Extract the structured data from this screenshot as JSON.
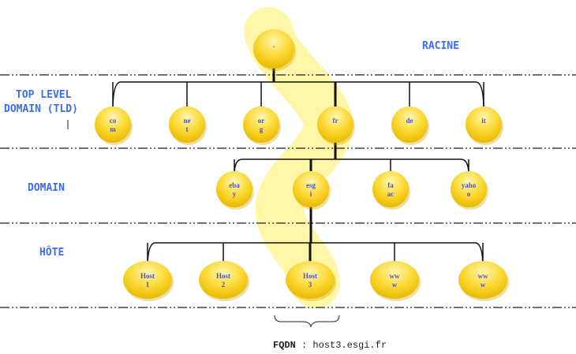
{
  "levels": {
    "root": "RACINE",
    "tld_line1": "TOP LEVEL",
    "tld_line2": "DOMAIN (TLD)",
    "domain": "DOMAIN",
    "host": "HÔTE"
  },
  "root_node": ".",
  "tld_nodes": [
    [
      "co",
      "m"
    ],
    [
      "ne",
      "t"
    ],
    [
      "or",
      "g"
    ],
    [
      "fr",
      ""
    ],
    [
      "de",
      ""
    ],
    [
      "it",
      ""
    ]
  ],
  "domain_nodes": [
    [
      "eba",
      "y"
    ],
    [
      "esg",
      "i"
    ],
    [
      "fa",
      "ac"
    ],
    [
      "yaho",
      "o"
    ]
  ],
  "host_nodes": [
    [
      "Host",
      "1"
    ],
    [
      "Host",
      "2"
    ],
    [
      "Host",
      "3"
    ],
    [
      "ww",
      "w"
    ],
    [
      "ww",
      "w"
    ]
  ],
  "fqdn": {
    "label": "FQDN",
    "separator": ":",
    "value": "host3.esgi.fr"
  },
  "colors": {
    "node": "#f7c800",
    "highlight": "#fff38a",
    "level_text": "#3a6df0"
  }
}
